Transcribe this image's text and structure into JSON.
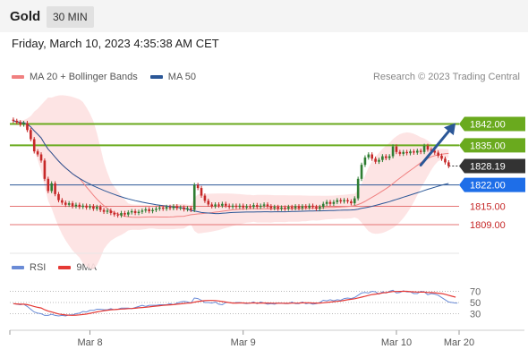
{
  "header": {
    "symbol": "Gold",
    "timeframe": "30 MIN"
  },
  "datetime": "Friday, March 10, 2023 4:35:38 AM CET",
  "credit": "Research © 2023 Trading Central",
  "colors": {
    "bull": "#2e7d32",
    "bear": "#c62828",
    "bb_fill": "#fde1e1",
    "ma20": "#f08080",
    "ma50": "#2b5797",
    "resistance": "#6aaa1e",
    "support_blue": "#2b5797",
    "support_red": "#e57373",
    "arrow": "#2b5797",
    "rsi": "#6a8bd6",
    "rsi_ma": "#e53935",
    "last": "#333333"
  },
  "chart_data": [
    {
      "type": "candlestick",
      "title": "",
      "legend": [
        {
          "label": "MA 20 + Bollinger Bands",
          "color": "#f08080"
        },
        {
          "label": "MA 50",
          "color": "#2b5797"
        }
      ],
      "ylim": [
        1804,
        1848
      ],
      "x_ticks": [
        "Mar 8",
        "Mar 9",
        "Mar 10",
        "Mar 20"
      ],
      "x_tick_index": [
        22,
        66,
        110,
        128
      ],
      "x_range": [
        -1,
        128
      ],
      "grid": false,
      "levels": [
        {
          "label": "1842.00",
          "value": 1842.0,
          "style": "resistance",
          "line_color": "#6aaa1e",
          "tag_bg": "#6aaa1e",
          "tag_fg": "#ffffff"
        },
        {
          "label": "1835.00",
          "value": 1835.0,
          "style": "resistance",
          "line_color": "#6aaa1e",
          "tag_bg": "#6aaa1e",
          "tag_fg": "#ffffff"
        },
        {
          "label": "1828.19",
          "value": 1828.19,
          "style": "last",
          "line_color": "#333333",
          "tag_bg": "#333333",
          "tag_fg": "#ffffff"
        },
        {
          "label": "1822.00",
          "value": 1822.0,
          "style": "support",
          "line_color": "#2b5797",
          "tag_bg": "#1e6ee8",
          "tag_fg": "#ffffff"
        },
        {
          "label": "1815.00",
          "value": 1815.0,
          "style": "support",
          "line_color": "#e57373",
          "tag_bg": "none",
          "tag_fg": "#c62828"
        },
        {
          "label": "1809.00",
          "value": 1809.0,
          "style": "support",
          "line_color": "#e57373",
          "tag_bg": "none",
          "tag_fg": "#c62828"
        }
      ],
      "forecast_arrow": {
        "from": [
          117,
          1828.5
        ],
        "to": [
          127,
          1842.3
        ]
      },
      "closes": [
        1843.0,
        1842.5,
        1841.8,
        1842.3,
        1840.0,
        1837.0,
        1833.0,
        1832.0,
        1830.0,
        1824.0,
        1820.0,
        1822.5,
        1819.0,
        1817.0,
        1816.2,
        1815.5,
        1816.0,
        1815.0,
        1815.5,
        1814.8,
        1815.2,
        1814.6,
        1815.0,
        1814.2,
        1814.8,
        1813.8,
        1813.2,
        1813.6,
        1812.8,
        1812.3,
        1812.0,
        1812.8,
        1812.3,
        1813.0,
        1813.4,
        1812.8,
        1813.2,
        1813.6,
        1814.0,
        1813.4,
        1813.8,
        1814.2,
        1814.6,
        1814.2,
        1814.8,
        1814.4,
        1815.0,
        1814.4,
        1814.6,
        1814.0,
        1814.4,
        1813.8,
        1822.0,
        1821.0,
        1818.5,
        1816.8,
        1815.6,
        1815.0,
        1815.6,
        1815.2,
        1815.8,
        1815.2,
        1814.8,
        1815.2,
        1814.8,
        1815.2,
        1814.6,
        1815.0,
        1814.8,
        1815.4,
        1814.8,
        1815.2,
        1815.6,
        1815.0,
        1814.4,
        1814.8,
        1814.2,
        1814.6,
        1814.2,
        1814.8,
        1814.4,
        1815.0,
        1814.4,
        1815.0,
        1814.6,
        1815.2,
        1814.8,
        1814.2,
        1814.8,
        1815.8,
        1816.4,
        1815.8,
        1816.4,
        1817.0,
        1816.6,
        1817.0,
        1816.6,
        1816.0,
        1817.6,
        1824.0,
        1828.6,
        1831.0,
        1832.0,
        1830.6,
        1829.6,
        1830.2,
        1831.4,
        1830.8,
        1831.4,
        1834.6,
        1832.8,
        1832.2,
        1832.8,
        1832.4,
        1833.0,
        1832.6,
        1833.2,
        1832.8,
        1834.8,
        1833.6,
        1833.2,
        1832.6,
        1831.6,
        1830.6,
        1829.4,
        1828.19
      ],
      "ma20": [
        1843.0,
        1842.75,
        1842.43,
        1842.4,
        1841.92,
        1841.05,
        1839.76,
        1838.6,
        1837.42,
        1835.48,
        1833.71,
        1832.49,
        1831.11,
        1829.82,
        1828.63,
        1827.59,
        1826.61,
        1825.69,
        1824.89,
        1824.14,
        1822.75,
        1821.35,
        1820.01,
        1818.61,
        1817.35,
        1816.21,
        1815.22,
        1814.3,
        1813.44,
        1812.93,
        1812.54,
        1812.06,
        1811.73,
        1811.53,
        1811.46,
        1811.42,
        1811.41,
        1811.44,
        1811.48,
        1811.52,
        1811.52,
        1811.5,
        1811.48,
        1811.48,
        1811.49,
        1811.52,
        1811.58,
        1811.67,
        1811.71,
        1811.74,
        1812.02,
        1812.24,
        1812.37,
        1812.51,
        1812.6,
        1812.73,
        1812.81,
        1812.92,
        1813.08,
        1813.21,
        1813.38,
        1813.54,
        1813.69,
        1813.86,
        1813.95,
        1814.05,
        1814.12,
        1814.2,
        1814.23,
        1814.28,
        1814.21,
        1814.21,
        1814.21,
        1814.2,
        1814.18,
        1814.23,
        1814.23,
        1814.24,
        1814.22,
        1814.26,
        1814.26,
        1814.27,
        1814.25,
        1814.3,
        1814.32,
        1814.39,
        1814.43,
        1814.4,
        1814.43,
        1814.51,
        1814.59,
        1814.62,
        1814.66,
        1814.75,
        1814.8,
        1814.84,
        1814.92,
        1815.02,
        1815.2,
        1815.58,
        1816.04,
        1816.62,
        1817.29,
        1817.97,
        1818.62,
        1819.31,
        1820.06,
        1820.79,
        1821.53,
        1822.46,
        1823.38,
        1824.24,
        1825.09,
        1825.93,
        1826.75,
        1827.57,
        1828.44,
        1829.3,
        1830.05,
        1830.72,
        1831.22,
        1831.6,
        1831.84,
        1832.03,
        1832.22,
        1832.34
      ],
      "bb_upper": [
        1843.0,
        1843.25,
        1843.32,
        1843.27,
        1843.78,
        1844.55,
        1846.0,
        1846.95,
        1848.2,
        1849.48,
        1850.63,
        1850.65,
        1851.06,
        1851.35,
        1851.4,
        1851.32,
        1851.11,
        1850.85,
        1850.45,
        1850.05,
        1849.17,
        1847.42,
        1845.38,
        1842.91,
        1838.96,
        1834.33,
        1829.49,
        1826.09,
        1823.13,
        1821.42,
        1819.98,
        1818.51,
        1817.19,
        1815.97,
        1815.61,
        1815.55,
        1815.55,
        1815.5,
        1815.44,
        1815.32,
        1815.32,
        1815.38,
        1815.46,
        1815.46,
        1815.48,
        1815.56,
        1815.67,
        1815.7,
        1815.76,
        1815.76,
        1815.55,
        1815.42,
        1817.8,
        1818.88,
        1819.0,
        1819.09,
        1819.11,
        1819.13,
        1819.19,
        1819.22,
        1819.22,
        1819.22,
        1819.2,
        1819.15,
        1819.09,
        1818.99,
        1818.91,
        1818.77,
        1818.73,
        1818.63,
        1818.73,
        1818.73,
        1818.73,
        1818.72,
        1818.7,
        1818.63,
        1818.63,
        1818.63,
        1818.63,
        1818.59,
        1818.59,
        1818.6,
        1818.57,
        1818.54,
        1818.53,
        1818.5,
        1818.48,
        1818.49,
        1818.48,
        1818.45,
        1818.47,
        1818.49,
        1818.52,
        1818.61,
        1818.69,
        1818.79,
        1818.9,
        1819.01,
        1819.08,
        1820.28,
        1822.4,
        1825.07,
        1827.71,
        1829.73,
        1831.26,
        1832.56,
        1833.85,
        1834.87,
        1835.79,
        1837.04,
        1837.97,
        1838.64,
        1839.02,
        1839.22,
        1839.08,
        1838.75,
        1838.27,
        1837.62,
        1837.24,
        1836.54,
        1835.55,
        1834.61,
        1833.86,
        1833.83,
        1833.78,
        1833.69
      ],
      "bb_lower": [
        1843.0,
        1842.25,
        1841.53,
        1841.53,
        1840.07,
        1837.55,
        1833.52,
        1830.25,
        1826.64,
        1821.48,
        1816.79,
        1814.33,
        1811.16,
        1808.29,
        1805.86,
        1803.86,
        1802.11,
        1800.53,
        1799.33,
        1798.23,
        1796.33,
        1795.28,
        1794.64,
        1794.31,
        1795.74,
        1798.09,
        1800.95,
        1802.51,
        1803.75,
        1804.44,
        1805.1,
        1805.61,
        1806.27,
        1807.09,
        1807.31,
        1807.29,
        1807.27,
        1807.38,
        1807.52,
        1807.72,
        1807.72,
        1807.62,
        1807.5,
        1807.5,
        1807.5,
        1807.48,
        1807.49,
        1807.64,
        1807.66,
        1807.72,
        1808.49,
        1809.06,
        1806.94,
        1806.14,
        1806.2,
        1806.37,
        1806.51,
        1806.71,
        1806.97,
        1807.2,
        1807.54,
        1807.86,
        1808.18,
        1808.57,
        1808.81,
        1809.11,
        1809.33,
        1809.63,
        1809.73,
        1809.93,
        1809.69,
        1809.69,
        1809.69,
        1809.68,
        1809.66,
        1809.83,
        1809.83,
        1809.85,
        1809.81,
        1809.93,
        1809.93,
        1809.94,
        1809.93,
        1810.06,
        1810.11,
        1810.28,
        1810.38,
        1810.31,
        1810.38,
        1810.57,
        1810.71,
        1810.75,
        1810.8,
        1810.89,
        1810.91,
        1810.89,
        1810.94,
        1811.03,
        1811.32,
        1810.88,
        1809.68,
        1808.17,
        1806.87,
        1806.21,
        1805.98,
        1806.06,
        1806.27,
        1806.71,
        1807.27,
        1807.88,
        1808.79,
        1809.84,
        1811.16,
        1812.64,
        1814.42,
        1816.39,
        1818.61,
        1820.98,
        1822.86,
        1824.9,
        1826.89,
        1828.59,
        1829.82,
        1830.23,
        1830.66,
        1830.99
      ],
      "ma50": [
        1843.0,
        1842.75,
        1842.43,
        1842.4,
        1841.92,
        1841.05,
        1839.76,
        1838.6,
        1837.42,
        1835.48,
        1833.71,
        1832.49,
        1831.11,
        1829.82,
        1828.63,
        1827.59,
        1826.61,
        1825.69,
        1824.89,
        1824.14,
        1823.48,
        1822.84,
        1822.27,
        1821.7,
        1821.2,
        1820.69,
        1820.2,
        1819.76,
        1819.32,
        1818.89,
        1818.48,
        1818.12,
        1817.76,
        1817.44,
        1817.15,
        1816.86,
        1816.6,
        1816.36,
        1816.14,
        1815.92,
        1815.72,
        1815.54,
        1815.37,
        1815.2,
        1815.06,
        1814.91,
        1814.79,
        1814.66,
        1814.54,
        1814.42,
        1814.04,
        1813.66,
        1813.45,
        1813.23,
        1812.99,
        1812.88,
        1812.8,
        1812.7,
        1812.61,
        1812.63,
        1812.75,
        1812.8,
        1812.92,
        1812.99,
        1813.03,
        1813.07,
        1813.08,
        1813.11,
        1813.11,
        1813.13,
        1813.15,
        1813.19,
        1813.2,
        1813.2,
        1813.19,
        1813.2,
        1813.2,
        1813.2,
        1813.21,
        1813.25,
        1813.29,
        1813.33,
        1813.35,
        1813.38,
        1813.41,
        1813.44,
        1813.48,
        1813.49,
        1813.5,
        1813.53,
        1813.57,
        1813.6,
        1813.63,
        1813.68,
        1813.72,
        1813.76,
        1813.78,
        1813.81,
        1813.85,
        1814.05,
        1814.34,
        1814.52,
        1814.73,
        1815.0,
        1815.28,
        1815.58,
        1815.9,
        1816.2,
        1816.52,
        1816.9,
        1817.27,
        1817.62,
        1817.98,
        1818.33,
        1818.71,
        1819.07,
        1819.43,
        1819.78,
        1820.19,
        1820.56,
        1820.9,
        1821.25,
        1821.59,
        1821.91,
        1822.21,
        1822.49
      ]
    },
    {
      "type": "line",
      "title": "",
      "legend": [
        {
          "label": "RSI",
          "color": "#6a8bd6"
        },
        {
          "label": "9MA",
          "color": "#e53935"
        }
      ],
      "ylim": [
        10,
        90
      ],
      "y_ticks": [
        70,
        50,
        30
      ],
      "x_range": [
        -1,
        128
      ],
      "series": [
        {
          "name": "RSI",
          "color": "#6a8bd6",
          "values": [
            48,
            47,
            46,
            47,
            43,
            38,
            33,
            31,
            30,
            27,
            27,
            29,
            27,
            26,
            27,
            26,
            28,
            28,
            30,
            31,
            34,
            33,
            36,
            36,
            38,
            38,
            37,
            37,
            39,
            37,
            38,
            40,
            40,
            40,
            39,
            41,
            43,
            45,
            43,
            45,
            45,
            45,
            46,
            46,
            46,
            48,
            46,
            49,
            51,
            52,
            51,
            49,
            58,
            57,
            54,
            50,
            50,
            49,
            51,
            47,
            46,
            50,
            50,
            49,
            50,
            50,
            49,
            48,
            49,
            51,
            48,
            51,
            49,
            47,
            48,
            47,
            49,
            49,
            48,
            48,
            51,
            48,
            48,
            51,
            48,
            49,
            47,
            48,
            50,
            54,
            53,
            55,
            53,
            55,
            54,
            57,
            58,
            57,
            59,
            63,
            67,
            68,
            67,
            70,
            69,
            65,
            69,
            67,
            70,
            72,
            67,
            68,
            71,
            69,
            69,
            66,
            66,
            70,
            69,
            64,
            66,
            65,
            63,
            59,
            55,
            51,
            50,
            49
          ]
        },
        {
          "name": "9MA",
          "color": "#e53935",
          "values": [
            48,
            47.5,
            47,
            47,
            46.2,
            44.8,
            43,
            41.4,
            40.3,
            37.1,
            34.7,
            33.1,
            31.3,
            29.6,
            28.6,
            27.8,
            27.3,
            27.1,
            27.4,
            28,
            28.5,
            29.3,
            30.6,
            31.9,
            33.2,
            34.3,
            35.5,
            36.2,
            37,
            37.3,
            37.9,
            38.4,
            38.7,
            39.1,
            39.3,
            39.8,
            40.5,
            41.1,
            41.6,
            42.2,
            42.9,
            43.6,
            44.3,
            44.9,
            45.4,
            45.9,
            46.2,
            46.9,
            47.6,
            48.3,
            48.9,
            49.2,
            50.6,
            51.7,
            52.6,
            53.3,
            53.7,
            53.7,
            53.6,
            52.8,
            51.7,
            50.8,
            49.8,
            49.1,
            49.1,
            49.2,
            49.2,
            48.9,
            48.9,
            49.3,
            49.1,
            49.1,
            49.2,
            49.0,
            48.9,
            48.8,
            48.9,
            48.8,
            48.6,
            48.6,
            48.9,
            48.9,
            49.0,
            49.3,
            49.4,
            49.4,
            49.1,
            49.0,
            49.1,
            49.6,
            50.1,
            50.8,
            51.4,
            52.1,
            52.7,
            53.8,
            55.0,
            55.7,
            56.7,
            58.1,
            59.6,
            61.1,
            62.6,
            64.2,
            65.1,
            65.9,
            67.2,
            67.8,
            68.7,
            69.7,
            69.7,
            69.8,
            70.0,
            70.0,
            69.4,
            69.1,
            68.8,
            68.5,
            68.6,
            68.0,
            67.8,
            67.4,
            66.7,
            66.0,
            64.8,
            63.0,
            61.2,
            59.6
          ]
        }
      ]
    }
  ]
}
